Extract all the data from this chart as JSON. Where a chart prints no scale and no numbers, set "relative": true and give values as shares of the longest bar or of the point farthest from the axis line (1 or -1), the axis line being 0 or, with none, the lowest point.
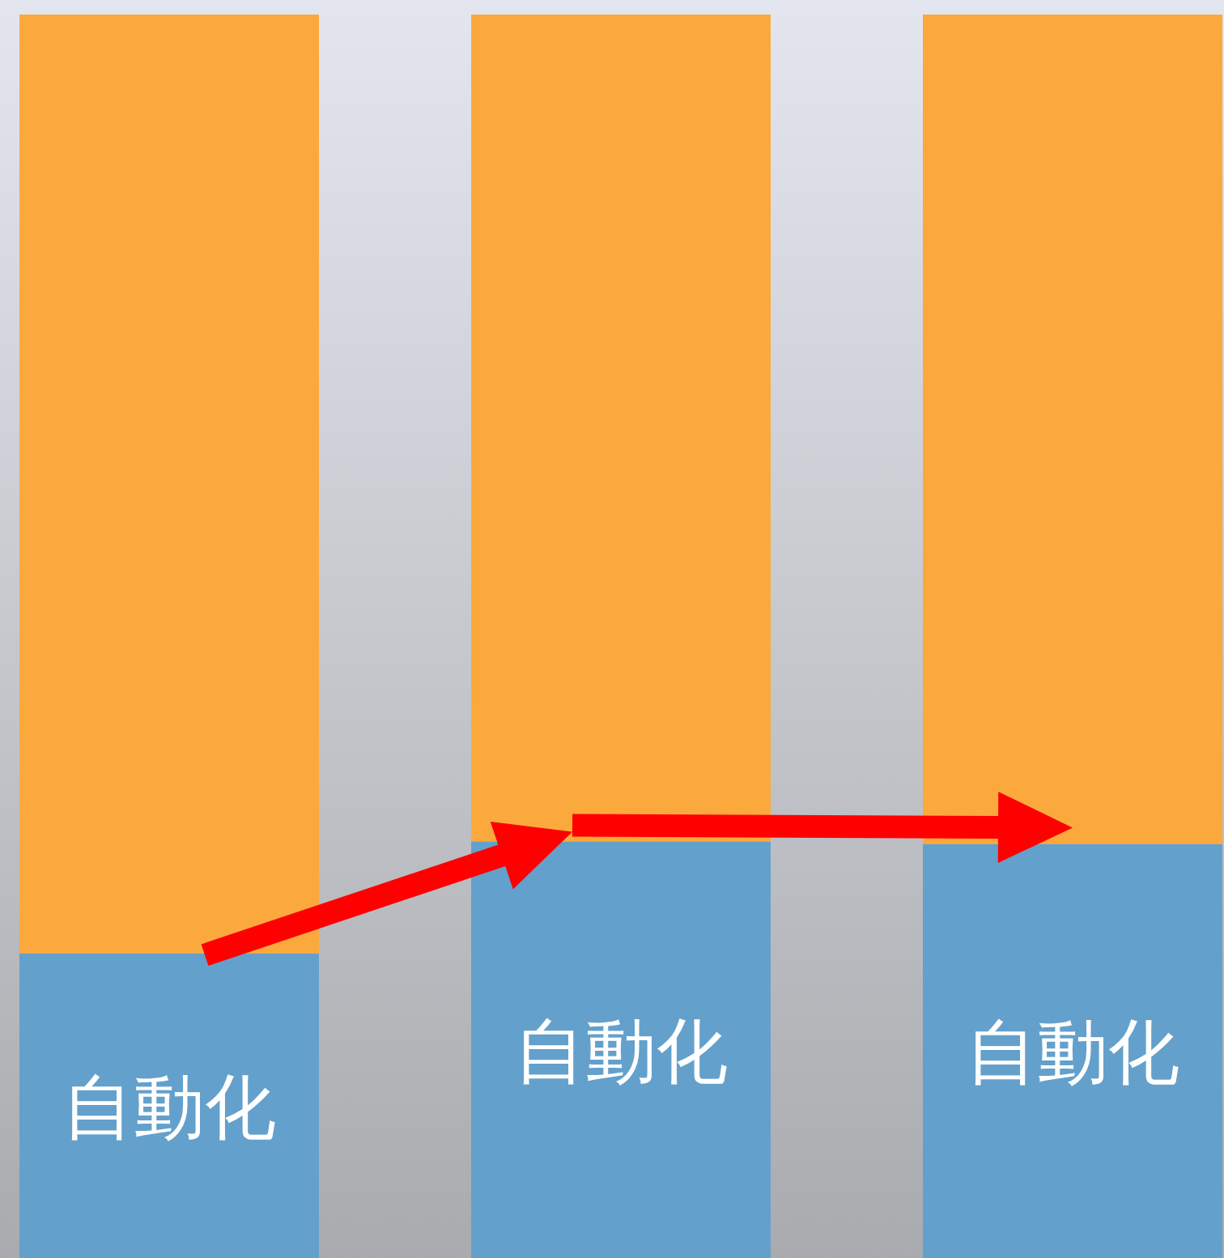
{
  "chart_data": {
    "type": "bar",
    "stacked": true,
    "relative": true,
    "categories": [
      null,
      null,
      null
    ],
    "series": [
      {
        "name": "自動化",
        "color": "#64a0cc",
        "values": [
          0.245,
          0.335,
          0.333
        ]
      },
      {
        "color": "#fba93c",
        "values": [
          0.755,
          0.665,
          0.667
        ]
      }
    ]
  }
}
